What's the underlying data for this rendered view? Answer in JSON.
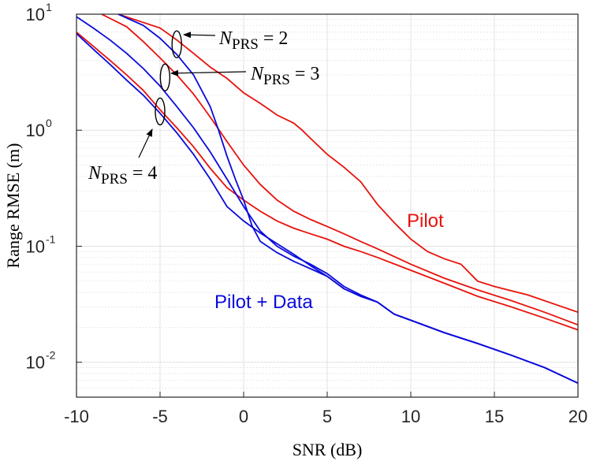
{
  "chart_data": {
    "type": "line",
    "yscale": "log",
    "xlim": [
      -10,
      20
    ],
    "ylim": [
      0.005,
      10
    ],
    "xlabel": "SNR (dB)",
    "ylabel": "Range RMSE (m)",
    "x_ticks": [
      -10,
      -5,
      0,
      5,
      10,
      15,
      20
    ],
    "x_tick_labels": [
      "-10",
      "-5",
      "0",
      "5",
      "10",
      "15",
      "20"
    ],
    "y_ticks": [
      {
        "value": 10,
        "base": "10",
        "exp": "1"
      },
      {
        "value": 1,
        "base": "10",
        "exp": "0"
      },
      {
        "value": 0.1,
        "base": "10",
        "exp": "-1"
      },
      {
        "value": 0.01,
        "base": "10",
        "exp": "-2"
      }
    ],
    "grid": true,
    "colors": {
      "pilot": "#e8120c",
      "pilot_data": "#0a0adc"
    },
    "series": [
      {
        "name": "Pilot, N_PRS = 2",
        "group": "pilot",
        "points": [
          [
            -7.5,
            10
          ],
          [
            -5,
            7.6
          ],
          [
            -4,
            6.0
          ],
          [
            -3,
            4.6
          ],
          [
            -2,
            3.5
          ],
          [
            -1,
            2.8
          ],
          [
            0,
            2.1
          ],
          [
            1,
            1.7
          ],
          [
            2,
            1.35
          ],
          [
            3,
            1.15
          ],
          [
            3.5,
            1.0
          ],
          [
            4,
            0.85
          ],
          [
            5,
            0.62
          ],
          [
            6,
            0.48
          ],
          [
            7,
            0.36
          ],
          [
            8,
            0.23
          ],
          [
            9,
            0.16
          ],
          [
            10,
            0.115
          ],
          [
            11,
            0.09
          ],
          [
            12,
            0.078
          ],
          [
            13,
            0.07
          ],
          [
            14,
            0.05
          ],
          [
            15,
            0.045
          ],
          [
            17,
            0.038
          ],
          [
            20,
            0.027
          ]
        ]
      },
      {
        "name": "Pilot, N_PRS = 3",
        "group": "pilot",
        "points": [
          [
            -8.5,
            10
          ],
          [
            -7,
            7.8
          ],
          [
            -6,
            5.8
          ],
          [
            -5,
            4.2
          ],
          [
            -4,
            3.0
          ],
          [
            -3,
            2.05
          ],
          [
            -2,
            1.3
          ],
          [
            -1,
            0.8
          ],
          [
            0,
            0.5
          ],
          [
            1,
            0.34
          ],
          [
            2,
            0.25
          ],
          [
            3,
            0.2
          ],
          [
            4,
            0.17
          ],
          [
            5,
            0.148
          ],
          [
            6,
            0.128
          ],
          [
            7,
            0.11
          ],
          [
            8,
            0.095
          ],
          [
            10,
            0.07
          ],
          [
            12,
            0.053
          ],
          [
            14,
            0.042
          ],
          [
            16,
            0.034
          ],
          [
            18,
            0.027
          ],
          [
            20,
            0.021
          ]
        ]
      },
      {
        "name": "Pilot, N_PRS = 4",
        "group": "pilot",
        "points": [
          [
            -10,
            7.0
          ],
          [
            -9,
            5.3
          ],
          [
            -8,
            4.0
          ],
          [
            -7,
            3.0
          ],
          [
            -6,
            2.2
          ],
          [
            -5,
            1.5
          ],
          [
            -4,
            1.05
          ],
          [
            -3,
            0.72
          ],
          [
            -2,
            0.47
          ],
          [
            -1,
            0.32
          ],
          [
            0,
            0.25
          ],
          [
            1,
            0.2
          ],
          [
            2,
            0.165
          ],
          [
            3,
            0.143
          ],
          [
            4,
            0.128
          ],
          [
            5,
            0.115
          ],
          [
            6,
            0.1
          ],
          [
            7,
            0.09
          ],
          [
            8,
            0.08
          ],
          [
            10,
            0.062
          ],
          [
            12,
            0.048
          ],
          [
            14,
            0.037
          ],
          [
            16,
            0.03
          ],
          [
            18,
            0.024
          ],
          [
            20,
            0.019
          ]
        ]
      },
      {
        "name": "Pilot + Data, N_PRS = 2",
        "group": "pilot_data",
        "points": [
          [
            -7.5,
            10
          ],
          [
            -6,
            8.0
          ],
          [
            -5,
            6.2
          ],
          [
            -4,
            4.5
          ],
          [
            -3,
            3.0
          ],
          [
            -2,
            1.6
          ],
          [
            -1.5,
            1.0
          ],
          [
            -1,
            0.6
          ],
          [
            -0.5,
            0.38
          ],
          [
            0,
            0.25
          ],
          [
            0.5,
            0.15
          ],
          [
            1,
            0.11
          ],
          [
            2,
            0.088
          ],
          [
            3,
            0.074
          ],
          [
            4,
            0.064
          ],
          [
            5,
            0.055
          ],
          [
            6,
            0.043
          ],
          [
            7,
            0.037
          ],
          [
            8,
            0.033
          ],
          [
            9,
            0.026
          ],
          [
            10,
            0.023
          ],
          [
            12,
            0.018
          ],
          [
            14,
            0.0145
          ],
          [
            16,
            0.0115
          ],
          [
            18,
            0.009
          ],
          [
            20,
            0.0066
          ]
        ]
      },
      {
        "name": "Pilot + Data, N_PRS = 3",
        "group": "pilot_data",
        "points": [
          [
            -10,
            9.5
          ],
          [
            -9,
            7.6
          ],
          [
            -8,
            6.0
          ],
          [
            -7,
            4.6
          ],
          [
            -6,
            3.4
          ],
          [
            -5,
            2.4
          ],
          [
            -4,
            1.6
          ],
          [
            -3,
            1.05
          ],
          [
            -2,
            0.65
          ],
          [
            -1,
            0.38
          ],
          [
            0,
            0.22
          ],
          [
            1,
            0.135
          ],
          [
            2,
            0.1
          ],
          [
            3,
            0.082
          ],
          [
            4,
            0.07
          ],
          [
            5,
            0.058
          ],
          [
            6,
            0.045
          ],
          [
            7,
            0.038
          ],
          [
            8,
            0.033
          ],
          [
            9,
            0.026
          ],
          [
            10,
            0.023
          ],
          [
            12,
            0.018
          ],
          [
            14,
            0.0145
          ],
          [
            16,
            0.0115
          ],
          [
            18,
            0.009
          ],
          [
            20,
            0.0066
          ]
        ]
      },
      {
        "name": "Pilot + Data, N_PRS = 4",
        "group": "pilot_data",
        "points": [
          [
            -10,
            6.8
          ],
          [
            -9,
            5.0
          ],
          [
            -8,
            3.7
          ],
          [
            -7,
            2.7
          ],
          [
            -6,
            2.0
          ],
          [
            -5,
            1.4
          ],
          [
            -4,
            0.95
          ],
          [
            -3,
            0.62
          ],
          [
            -2,
            0.38
          ],
          [
            -1,
            0.22
          ],
          [
            0,
            0.165
          ],
          [
            1,
            0.13
          ],
          [
            2,
            0.105
          ],
          [
            3,
            0.085
          ],
          [
            4,
            0.068
          ],
          [
            5,
            0.055
          ],
          [
            6,
            0.043
          ],
          [
            7,
            0.037
          ],
          [
            8,
            0.033
          ],
          [
            9,
            0.026
          ],
          [
            10,
            0.023
          ],
          [
            12,
            0.018
          ],
          [
            14,
            0.0145
          ],
          [
            16,
            0.0115
          ],
          [
            18,
            0.009
          ],
          [
            20,
            0.0066
          ]
        ]
      }
    ],
    "curve_labels": [
      {
        "text": "Pilot",
        "group": "pilot"
      },
      {
        "text": "Pilot + Data",
        "group": "pilot_data"
      }
    ],
    "annotations": [
      {
        "prefix": "N",
        "subscript": "PRS",
        "suffix": " = 2",
        "ellipse_x": -4.0,
        "ellipse_y": 5.5
      },
      {
        "prefix": "N",
        "subscript": "PRS",
        "suffix": " = 3",
        "ellipse_x": -4.7,
        "ellipse_y": 2.85
      },
      {
        "prefix": "N",
        "subscript": "PRS",
        "suffix": " = 4",
        "ellipse_x": -5.0,
        "ellipse_y": 1.45
      }
    ]
  }
}
